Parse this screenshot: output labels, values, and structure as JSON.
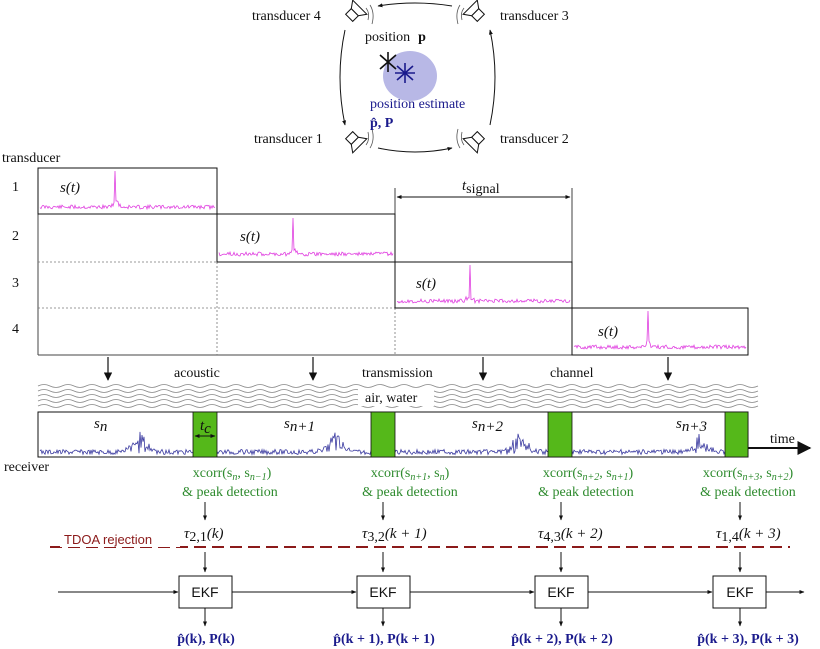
{
  "top": {
    "transducer_4": "transducer 4",
    "transducer_3": "transducer 3",
    "transducer_1": "transducer 1",
    "transducer_2": "transducer 2",
    "position_label": "position",
    "position_symbol": "p",
    "estimate_label": "position estimate",
    "estimate_symbols": "p̂,  P"
  },
  "schedule": {
    "axis_label": "transducer",
    "rows": [
      "1",
      "2",
      "3",
      "4"
    ],
    "signal_label": "s(t)",
    "t_signal_label": "t",
    "t_signal_sub": "signal"
  },
  "channel": {
    "words": [
      "acoustic",
      "transmission",
      "channel"
    ],
    "medium": "air, water"
  },
  "receiver": {
    "label": "receiver",
    "time_label": "time",
    "tc_label": "t",
    "tc_sub": "c",
    "segments": [
      {
        "base": "s",
        "sub": "n"
      },
      {
        "base": "s",
        "sub": "n+1"
      },
      {
        "base": "s",
        "sub": "n+2"
      },
      {
        "base": "s",
        "sub": "n+3"
      }
    ]
  },
  "processing": {
    "xcorr": [
      {
        "line1": "xcorr(s",
        "a": "n",
        "mid": ", s",
        "b": "n−1",
        "end": ")"
      },
      {
        "line1": "xcorr(s",
        "a": "n+1",
        "mid": ", s",
        "b": "n",
        "end": ")"
      },
      {
        "line1": "xcorr(s",
        "a": "n+2",
        "mid": ", s",
        "b": "n+1",
        "end": ")"
      },
      {
        "line1": "xcorr(s",
        "a": "n+3",
        "mid": ", s",
        "b": "n+2",
        "end": ")"
      }
    ],
    "peak": "& peak detection",
    "tdoa_rejection": "TDOA rejection",
    "tau": [
      {
        "sub": "2,1",
        "arg": "(k)"
      },
      {
        "sub": "3,2",
        "arg": "(k + 1)"
      },
      {
        "sub": "4,3",
        "arg": "(k + 2)"
      },
      {
        "sub": "1,4",
        "arg": "(k + 3)"
      }
    ],
    "ekf": "EKF",
    "outputs": [
      "p̂(k),  P(k)",
      "p̂(k + 1),  P(k + 1)",
      "p̂(k + 2),  P(k + 2)",
      "p̂(k + 3),  P(k + 3)"
    ]
  },
  "colors": {
    "signal": "#e040e0",
    "receiver": "#3a3aa0",
    "green_block": "#55b81a",
    "green_text": "#2d8a2d",
    "estimate_blue": "#1a1a8c",
    "rejection": "#8b1a1a",
    "ellipse": "#b8b8e6"
  }
}
